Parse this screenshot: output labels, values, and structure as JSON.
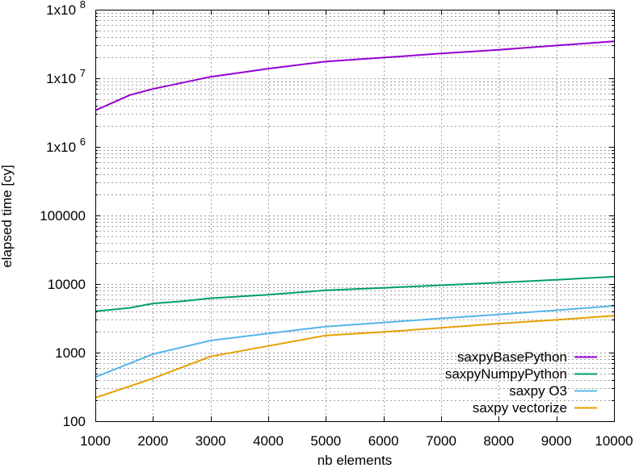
{
  "chart_data": {
    "type": "line",
    "title": "",
    "xlabel": "nb elements",
    "ylabel": "elapsed time [cy]",
    "x_scale": "linear",
    "y_scale": "log",
    "xlim": [
      1000,
      10000
    ],
    "ylim": [
      100,
      100000000
    ],
    "grid": true,
    "legend_position": "bottom-right",
    "x_ticks": [
      1000,
      2000,
      3000,
      4000,
      5000,
      6000,
      7000,
      8000,
      9000,
      10000
    ],
    "x_tick_labels": [
      "1000",
      "2000",
      "3000",
      "4000",
      "5000",
      "6000",
      "7000",
      "8000",
      "9000",
      "10000"
    ],
    "y_ticks": [
      {
        "value": 100,
        "label": "100"
      },
      {
        "value": 1000,
        "label": "1000"
      },
      {
        "value": 10000,
        "label": "10000"
      },
      {
        "value": 100000,
        "label": "100000"
      },
      {
        "value": 1000000,
        "label": "1x10",
        "exp": "6"
      },
      {
        "value": 10000000,
        "label": "1x10",
        "exp": "7"
      },
      {
        "value": 100000000,
        "label": "1x10",
        "exp": "8"
      }
    ],
    "series": [
      {
        "name": "saxpyBasePython",
        "color": "#9400d3",
        "x": [
          1000,
          1600,
          2000,
          3000,
          4000,
          5000,
          6000,
          7000,
          8000,
          9000,
          10000
        ],
        "values": [
          3400000,
          5700000,
          7000000,
          10500000,
          13800000,
          17500000,
          20000000,
          23000000,
          26000000,
          30000000,
          34500000
        ]
      },
      {
        "name": "saxpyNumpyPython",
        "color": "#009e73",
        "x": [
          1000,
          1600,
          2000,
          2500,
          3000,
          4000,
          5000,
          6000,
          7000,
          8000,
          9000,
          10000
        ],
        "values": [
          4000,
          4500,
          5200,
          5600,
          6200,
          7000,
          8100,
          8800,
          9600,
          10500,
          11500,
          12800
        ]
      },
      {
        "name": "saxpy O3",
        "color": "#56b4e9",
        "x": [
          1000,
          2000,
          3000,
          4000,
          5000,
          6000,
          7000,
          8000,
          9000,
          10000
        ],
        "values": [
          440,
          950,
          1500,
          1900,
          2400,
          2750,
          3150,
          3600,
          4150,
          4800
        ]
      },
      {
        "name": "saxpy vectorize",
        "color": "#e69f00",
        "x": [
          1000,
          2000,
          3000,
          4000,
          5000,
          6000,
          7000,
          8000,
          9000,
          10000
        ],
        "values": [
          220,
          420,
          880,
          1250,
          1780,
          2000,
          2300,
          2650,
          3000,
          3450
        ]
      }
    ]
  }
}
